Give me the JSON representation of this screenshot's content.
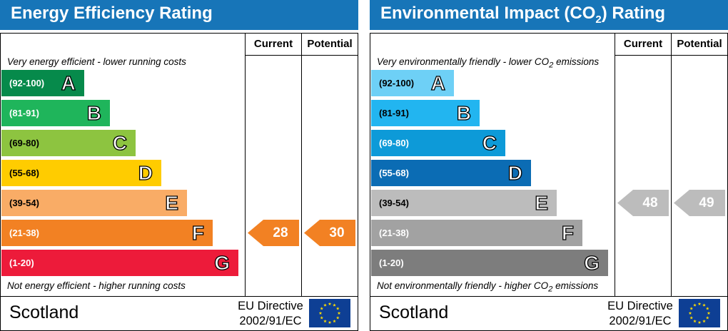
{
  "chart_data": [
    {
      "type": "bar",
      "title": "Energy Efficiency Rating",
      "columns": [
        "Current",
        "Potential"
      ],
      "top_note": "Very energy efficient - lower running costs",
      "bottom_note": "Not energy efficient - higher running costs",
      "bands": [
        {
          "range": "(92-100)",
          "letter": "A",
          "color": "#068a4b"
        },
        {
          "range": "(81-91)",
          "letter": "B",
          "color": "#1fb55b"
        },
        {
          "range": "(69-80)",
          "letter": "C",
          "color": "#8dc440"
        },
        {
          "range": "(55-68)",
          "letter": "D",
          "color": "#ffcc00"
        },
        {
          "range": "(39-54)",
          "letter": "E",
          "color": "#f9ac66"
        },
        {
          "range": "(21-38)",
          "letter": "F",
          "color": "#f28123"
        },
        {
          "range": "(1-20)",
          "letter": "G",
          "color": "#ed1b3a"
        }
      ],
      "current": {
        "value": 28,
        "band": "F",
        "color": "#f28123"
      },
      "potential": {
        "value": 30,
        "band": "F",
        "color": "#f28123"
      },
      "footer": {
        "region": "Scotland",
        "directive_line1": "EU Directive",
        "directive_line2": "2002/91/EC"
      }
    },
    {
      "type": "bar",
      "title": "Environmental Impact (CO2) Rating",
      "columns": [
        "Current",
        "Potential"
      ],
      "top_note": "Very environmentally friendly - lower CO2 emissions",
      "bottom_note": "Not environmentally friendly - higher CO2 emissions",
      "bands": [
        {
          "range": "(92-100)",
          "letter": "A",
          "color": "#6ed0f6"
        },
        {
          "range": "(81-91)",
          "letter": "B",
          "color": "#22b5f0"
        },
        {
          "range": "(69-80)",
          "letter": "C",
          "color": "#0d9ad8"
        },
        {
          "range": "(55-68)",
          "letter": "D",
          "color": "#0b6cb4"
        },
        {
          "range": "(39-54)",
          "letter": "E",
          "color": "#bcbcbc"
        },
        {
          "range": "(21-38)",
          "letter": "F",
          "color": "#a2a2a2"
        },
        {
          "range": "(1-20)",
          "letter": "G",
          "color": "#7d7d7d"
        }
      ],
      "current": {
        "value": 48,
        "band": "E",
        "color": "#bcbcbc"
      },
      "potential": {
        "value": 49,
        "band": "E",
        "color": "#bcbcbc"
      },
      "footer": {
        "region": "Scotland",
        "directive_line1": "EU Directive",
        "directive_line2": "2002/91/EC"
      }
    }
  ]
}
